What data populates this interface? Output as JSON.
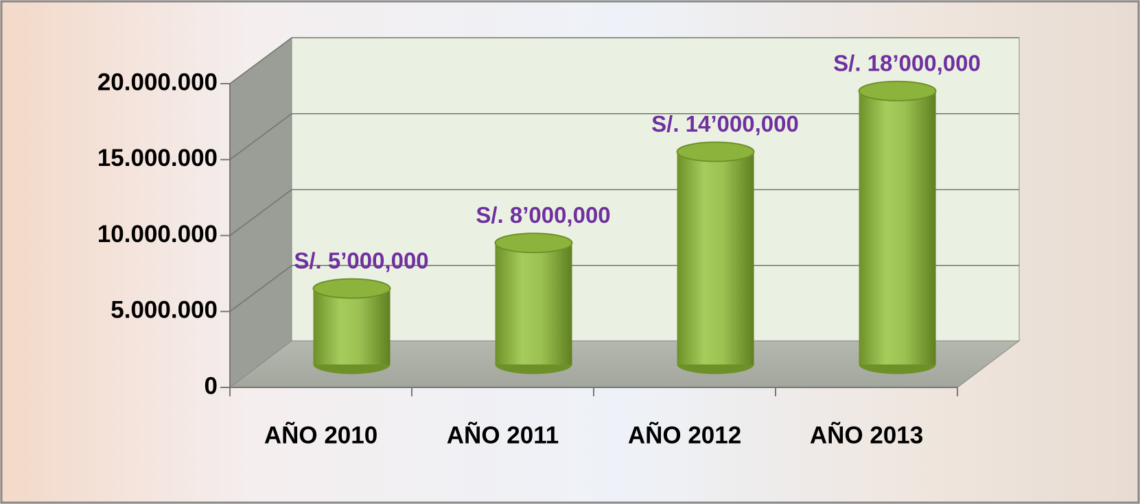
{
  "chart_data": {
    "type": "bar",
    "categories": [
      "AÑO 2010",
      "AÑO 2011",
      "AÑO 2012",
      "AÑO 2013"
    ],
    "values": [
      5000000,
      8000000,
      14000000,
      18000000
    ],
    "value_labels": [
      "S/. 5’000,000",
      "S/. 8’000,000",
      "S/. 14’000,000",
      "S/. 18’000,000"
    ],
    "color": "#8cb43c",
    "value_label_color": "#7030a0",
    "ylim": [
      0,
      20000000
    ],
    "yticks": [
      0,
      {
        "value": 5000000,
        "label": "5.000.000"
      },
      {
        "value": 10000000,
        "label": "10.000.000"
      },
      {
        "value": 15000000,
        "label": "15.000.000"
      },
      {
        "value": 20000000,
        "label": "20.000.000"
      }
    ],
    "grid": true
  }
}
